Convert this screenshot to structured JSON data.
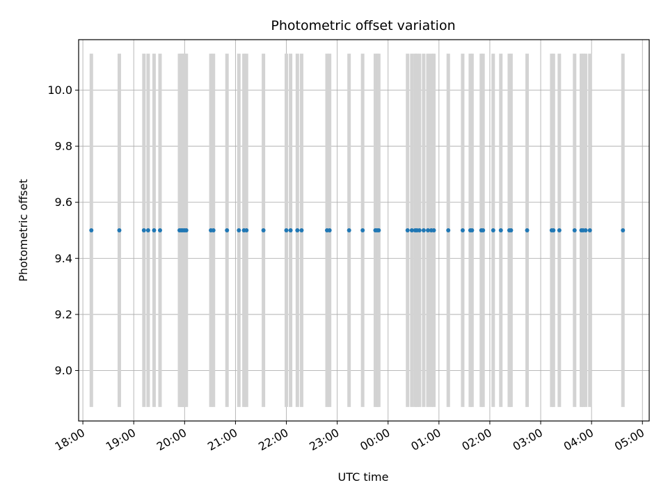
{
  "chart_data": {
    "type": "scatter",
    "title": "Photometric offset variation",
    "xlabel": "UTC time",
    "ylabel": "Photometric offset",
    "x_axis_type": "time",
    "x_start_date": "2000-01-01",
    "xlim": [
      "2000-01-01T17:55",
      "2000-01-02T05:08"
    ],
    "ylim": [
      8.82,
      10.18
    ],
    "x_ticks": [
      "18:00",
      "19:00",
      "20:00",
      "21:00",
      "22:00",
      "23:00",
      "00:00",
      "01:00",
      "02:00",
      "03:00",
      "04:00",
      "05:00"
    ],
    "y_ticks": [
      "9.0",
      "9.2",
      "9.4",
      "9.6",
      "9.8",
      "10.0"
    ],
    "grid": true,
    "point_color": "#1f77b4",
    "errorbar_color": "#d3d3d3",
    "error_range": [
      8.87,
      10.13
    ],
    "series": [
      {
        "x": [
          "18:10",
          "18:43",
          "19:12",
          "19:17",
          "19:24",
          "19:31",
          "19:54",
          "19:56",
          "19:58",
          "20:00",
          "20:02",
          "20:31",
          "20:34",
          "20:50",
          "21:04",
          "21:10",
          "21:13",
          "21:33",
          "22:00",
          "22:05",
          "22:13",
          "22:18",
          "22:48",
          "22:51",
          "23:14",
          "23:30",
          "23:45",
          "23:47",
          "23:49",
          "00:23",
          "00:28",
          "00:32",
          "00:34",
          "00:37",
          "00:42",
          "00:47",
          "00:51",
          "00:54",
          "01:11",
          "01:28",
          "01:37",
          "01:39",
          "01:50",
          "01:52",
          "02:04",
          "02:13",
          "02:23",
          "02:25",
          "02:44",
          "03:13",
          "03:15",
          "03:22",
          "03:40",
          "03:48",
          "03:50",
          "03:53",
          "03:58",
          "04:37"
        ],
        "y": [
          9.5,
          9.5,
          9.5,
          9.5,
          9.5,
          9.5,
          9.5,
          9.5,
          9.5,
          9.5,
          9.5,
          9.5,
          9.5,
          9.5,
          9.5,
          9.5,
          9.5,
          9.5,
          9.5,
          9.5,
          9.5,
          9.5,
          9.5,
          9.5,
          9.5,
          9.5,
          9.5,
          9.5,
          9.5,
          9.5,
          9.5,
          9.5,
          9.5,
          9.5,
          9.5,
          9.5,
          9.5,
          9.5,
          9.5,
          9.5,
          9.5,
          9.5,
          9.5,
          9.5,
          9.5,
          9.5,
          9.5,
          9.5,
          9.5,
          9.5,
          9.5,
          9.5,
          9.5,
          9.5,
          9.5,
          9.5,
          9.5,
          9.5
        ]
      }
    ]
  }
}
